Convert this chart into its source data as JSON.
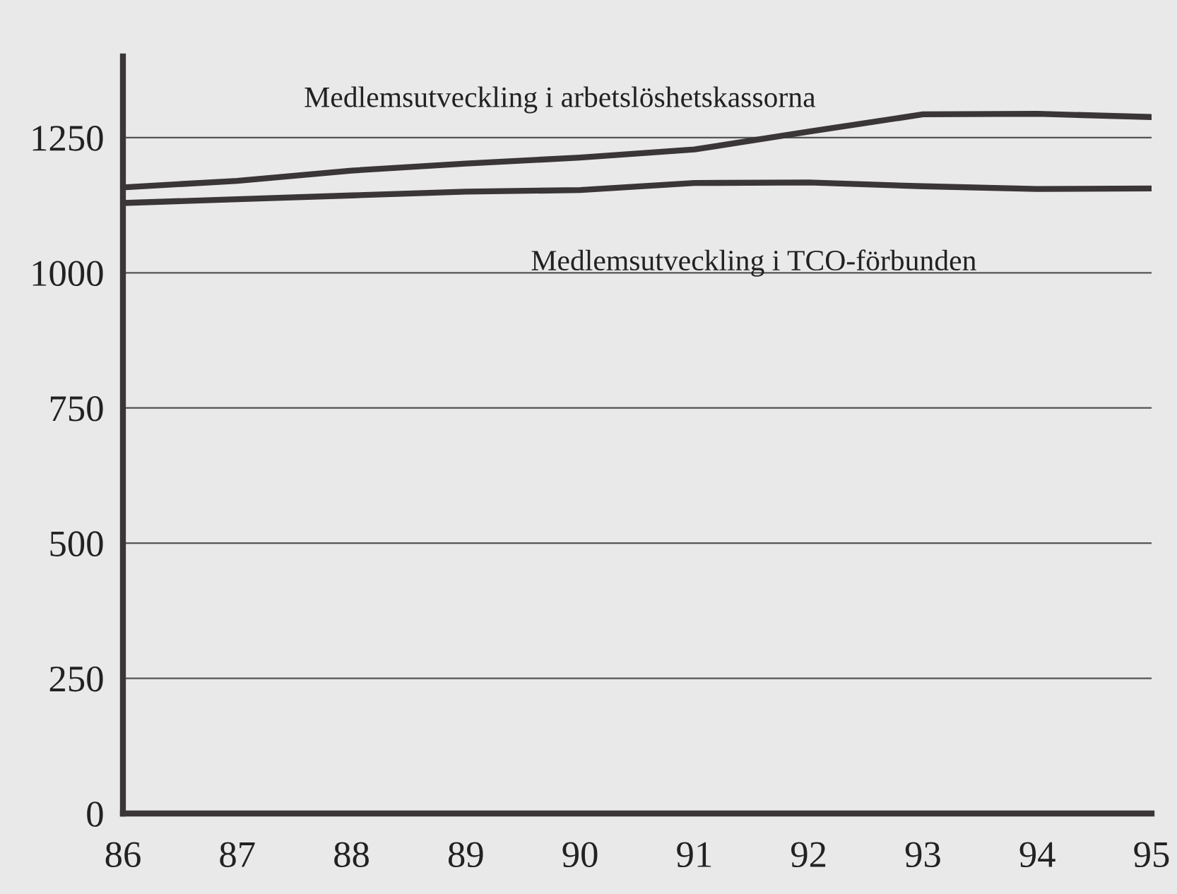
{
  "chart_data": {
    "type": "line",
    "x": [
      86,
      87,
      88,
      89,
      90,
      91,
      92,
      93,
      94,
      95
    ],
    "series": [
      {
        "name": "Medlemsutveckling i arbetslöshetskassorna",
        "color": "#3a3536",
        "values": [
          1158,
          1170,
          1189,
          1202,
          1213,
          1228,
          1261,
          1293,
          1294,
          1288
        ]
      },
      {
        "name": "Medlemsutveckling i TCO-förbunden",
        "color": "#3a3536",
        "values": [
          1129,
          1136,
          1143,
          1150,
          1153,
          1166,
          1167,
          1160,
          1155,
          1156
        ]
      }
    ],
    "xlim": [
      86,
      95
    ],
    "ylim": [
      0,
      1400
    ],
    "xticks": [
      {
        "value": 86,
        "label": "86"
      },
      {
        "value": 87,
        "label": "87"
      },
      {
        "value": 88,
        "label": "88"
      },
      {
        "value": 89,
        "label": "89"
      },
      {
        "value": 90,
        "label": "90"
      },
      {
        "value": 91,
        "label": "91"
      },
      {
        "value": 92,
        "label": "92"
      },
      {
        "value": 93,
        "label": "93"
      },
      {
        "value": 94,
        "label": "94"
      },
      {
        "value": 95,
        "label": "95"
      }
    ],
    "yticks": [
      0,
      250,
      500,
      750,
      1000,
      1250
    ],
    "grid": "y",
    "legend": false,
    "marker": "none",
    "line_style": "solid"
  }
}
